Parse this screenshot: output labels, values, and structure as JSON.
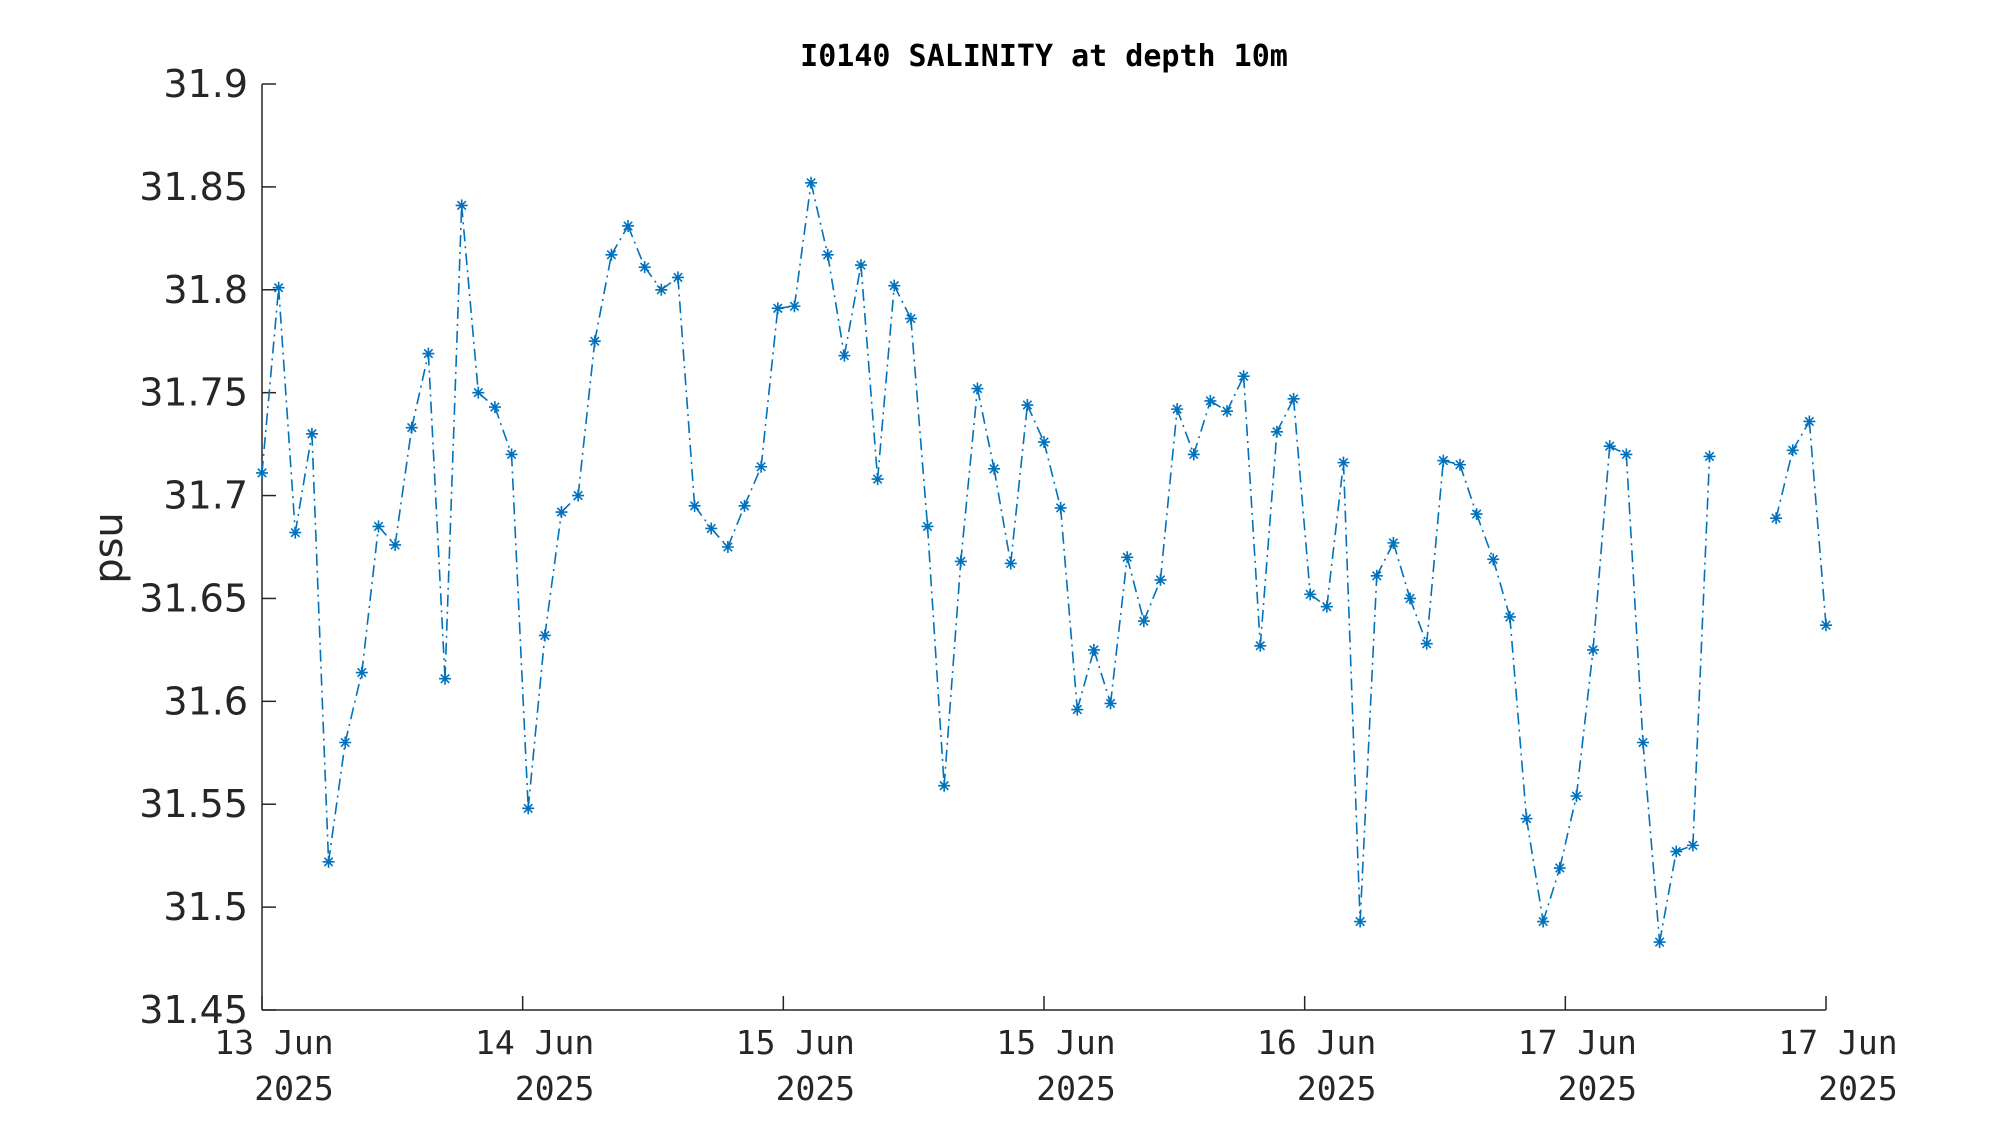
{
  "chart_data": {
    "type": "line",
    "title": "I0140 SALINITY at depth 10m",
    "xlabel": "",
    "ylabel": "psu",
    "ylim": [
      31.45,
      31.9
    ],
    "yticks": [
      31.45,
      31.5,
      31.55,
      31.6,
      31.65,
      31.7,
      31.75,
      31.8,
      31.85,
      31.9
    ],
    "ytick_labels": [
      "31.45",
      "31.5",
      "31.55",
      "31.6",
      "31.65",
      "31.7",
      "31.75",
      "31.8",
      "31.85",
      "31.9"
    ],
    "x_unit": "days",
    "xlim": [
      0,
      6
    ],
    "xticks": [
      {
        "x": 0,
        "line1": "13 Jun",
        "line2": "2025"
      },
      {
        "x": 1,
        "line1": "14 Jun",
        "line2": "2025"
      },
      {
        "x": 2,
        "line1": "15 Jun",
        "line2": "2025"
      },
      {
        "x": 3,
        "line1": "15 Jun",
        "line2": "2025"
      },
      {
        "x": 4,
        "line1": "16 Jun",
        "line2": "2025"
      },
      {
        "x": 5,
        "line1": "17 Jun",
        "line2": "2025"
      },
      {
        "x": 6,
        "line1": "17 Jun",
        "line2": "2025"
      }
    ],
    "grid": false,
    "marker": "asterisk",
    "line_style": "dash-dot",
    "color": "#0072bd",
    "series": [
      {
        "values": [
          31.711,
          31.801,
          31.682,
          31.73,
          31.522,
          31.58,
          31.614,
          31.685,
          31.676,
          31.733,
          31.769,
          31.611,
          31.841,
          31.75,
          31.743,
          31.72,
          31.548,
          31.632,
          31.692,
          31.7,
          31.775,
          31.817,
          31.831,
          31.811,
          31.8,
          31.806,
          31.695,
          31.684,
          31.675,
          31.695,
          31.714,
          31.791,
          31.792,
          31.852,
          31.817,
          31.768,
          31.812,
          31.708,
          31.802,
          31.786,
          31.685,
          31.559,
          31.668,
          31.752,
          31.713,
          31.667,
          31.744,
          31.726,
          31.694,
          31.596,
          31.625,
          31.599,
          31.67,
          31.639,
          31.659,
          31.742,
          31.72,
          31.746,
          31.741,
          31.758,
          31.627,
          31.731,
          31.747,
          31.652,
          31.646,
          31.716,
          31.493,
          31.661,
          31.677,
          31.65,
          31.628,
          31.717,
          31.715,
          31.691,
          31.669,
          31.641,
          31.543,
          31.493,
          31.519,
          31.554,
          31.625,
          31.724,
          31.72,
          31.58,
          31.483,
          31.527,
          31.53,
          31.719,
          null,
          null,
          null,
          31.689,
          31.722,
          31.736,
          31.637
        ]
      }
    ]
  }
}
